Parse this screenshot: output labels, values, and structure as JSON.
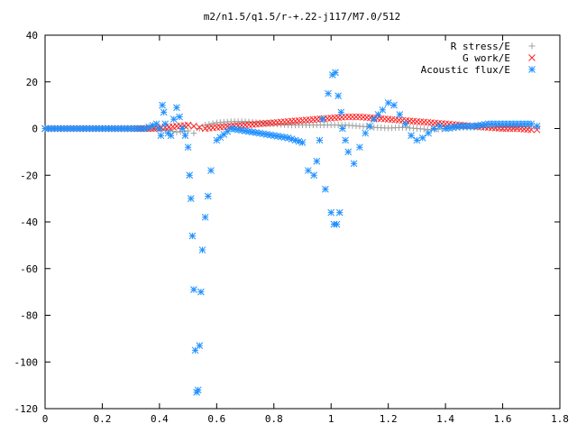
{
  "chart_data": {
    "type": "scatter",
    "title": "m2/n1.5/q1.5/r-+.22-j117/M7.0/512",
    "xlabel": "",
    "ylabel": "",
    "xlim": [
      0,
      1.8
    ],
    "ylim": [
      -120,
      40
    ],
    "xticks": [
      "0",
      "0.2",
      "0.4",
      "0.6",
      "0.8",
      "1",
      "1.2",
      "1.4",
      "1.6",
      "1.8"
    ],
    "yticks": [
      "40",
      "20",
      "0",
      "-20",
      "-40",
      "-60",
      "-80",
      "-100",
      "-120"
    ],
    "grid": false,
    "legend_position": "top-right",
    "series": [
      {
        "name": "R stress/E",
        "marker": "plus",
        "color": "#a0a0a0",
        "x": [
          0,
          0.1,
          0.2,
          0.3,
          0.38,
          0.42,
          0.46,
          0.5,
          0.52,
          0.54,
          0.56,
          0.6,
          0.65,
          0.7,
          0.75,
          0.8,
          0.85,
          0.9,
          0.95,
          1.0,
          1.05,
          1.1,
          1.15,
          1.2,
          1.25,
          1.3,
          1.35,
          1.4,
          1.45,
          1.5,
          1.6,
          1.7,
          1.72
        ],
        "y": [
          0,
          0,
          0,
          0,
          0,
          -0.5,
          -1.5,
          -1,
          -2,
          0,
          1.5,
          2.5,
          3,
          3,
          2.5,
          2,
          1.5,
          1.5,
          1.5,
          1.5,
          1.5,
          1,
          0.5,
          0.2,
          0.5,
          0,
          -0.5,
          0,
          0.3,
          0.5,
          0.5,
          1,
          1
        ]
      },
      {
        "name": "G work/E",
        "marker": "cross",
        "color": "#ff2020",
        "x": [
          0,
          0.1,
          0.2,
          0.3,
          0.38,
          0.42,
          0.46,
          0.5,
          0.52,
          0.54,
          0.56,
          0.6,
          0.65,
          0.7,
          0.75,
          0.8,
          0.85,
          0.9,
          0.95,
          1.0,
          1.05,
          1.1,
          1.15,
          1.2,
          1.25,
          1.3,
          1.35,
          1.4,
          1.45,
          1.5,
          1.55,
          1.6,
          1.65,
          1.7,
          1.72
        ],
        "y": [
          0,
          0,
          0,
          0,
          0,
          0.5,
          1,
          1.5,
          1,
          0.5,
          0,
          0.5,
          1,
          1.5,
          2,
          2.5,
          3,
          3.5,
          4,
          4.5,
          5,
          5,
          4.5,
          4,
          3.5,
          3,
          2.5,
          2,
          1.5,
          1,
          0.5,
          0,
          0,
          -0.5,
          -0.5
        ]
      },
      {
        "name": "Acoustic flux/E",
        "marker": "star",
        "color": "#1e90ff",
        "x": [
          0,
          0.1,
          0.2,
          0.3,
          0.35,
          0.39,
          0.4,
          0.405,
          0.41,
          0.415,
          0.42,
          0.43,
          0.44,
          0.45,
          0.46,
          0.47,
          0.48,
          0.49,
          0.5,
          0.505,
          0.51,
          0.515,
          0.52,
          0.525,
          0.53,
          0.535,
          0.54,
          0.545,
          0.55,
          0.56,
          0.57,
          0.58,
          0.6,
          0.65,
          0.7,
          0.75,
          0.8,
          0.85,
          0.9,
          0.92,
          0.94,
          0.95,
          0.96,
          0.97,
          0.98,
          0.99,
          1.0,
          1.005,
          1.01,
          1.015,
          1.02,
          1.025,
          1.03,
          1.035,
          1.04,
          1.05,
          1.06,
          1.08,
          1.1,
          1.12,
          1.15,
          1.18,
          1.2,
          1.22,
          1.24,
          1.26,
          1.28,
          1.3,
          1.32,
          1.34,
          1.36,
          1.38,
          1.4,
          1.45,
          1.5,
          1.55,
          1.6,
          1.65,
          1.7,
          1.72
        ],
        "y": [
          0,
          0,
          0,
          0,
          0,
          2,
          0,
          -3,
          10,
          7,
          2,
          -2,
          -3,
          4,
          9,
          5,
          0,
          -3,
          -8,
          -20,
          -30,
          -46,
          -69,
          -95,
          -113,
          -112,
          -93,
          -70,
          -52,
          -38,
          -29,
          -18,
          -5,
          0,
          -1,
          -2,
          -3,
          -4,
          -6,
          -18,
          -20,
          -14,
          -5,
          4,
          -26,
          15,
          -36,
          23,
          -41,
          24,
          -41,
          14,
          -36,
          7,
          0,
          -5,
          -10,
          -15,
          -8,
          -2,
          4,
          8,
          11,
          10,
          6,
          2,
          -3,
          -5,
          -4,
          -2,
          0,
          1,
          0,
          1,
          1,
          2,
          2,
          2,
          2,
          1
        ]
      }
    ]
  }
}
